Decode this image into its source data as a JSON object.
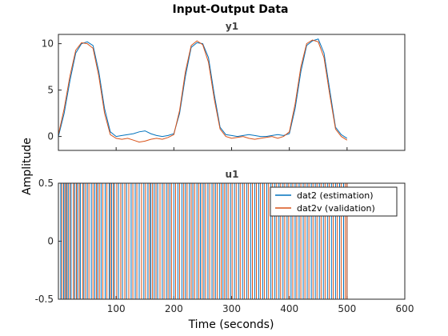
{
  "chart_data": {
    "type": "line",
    "title": "Input-Output Data",
    "xlabel": "Time (seconds)",
    "ylabel": "Amplitude",
    "xlim": [
      0,
      600
    ],
    "x_ticks": [
      "100",
      "200",
      "300",
      "400",
      "500",
      "600"
    ],
    "x_tick_values": [
      100,
      200,
      300,
      400,
      500,
      600
    ],
    "colors": {
      "estimation": "#0072BD",
      "validation": "#D95319"
    },
    "legend": {
      "placement": "inside-top-right of lower axes",
      "entries": [
        "dat2 (estimation)",
        "dat2v (validation)"
      ]
    },
    "panels": [
      {
        "name": "y1",
        "ylim": [
          -1.5,
          11
        ],
        "y_ticks": [
          "0",
          "5",
          "10"
        ],
        "y_tick_values": [
          0,
          5,
          10
        ],
        "series": [
          {
            "name": "dat2 (estimation)",
            "x": [
              0,
              10,
              20,
              30,
              40,
              50,
              60,
              70,
              80,
              90,
              100,
              110,
              120,
              130,
              140,
              150,
              160,
              170,
              180,
              190,
              200,
              210,
              220,
              230,
              240,
              250,
              260,
              270,
              280,
              290,
              300,
              310,
              320,
              330,
              340,
              350,
              360,
              370,
              380,
              390,
              400,
              410,
              420,
              430,
              440,
              450,
              460,
              470,
              480,
              490,
              500
            ],
            "y": [
              0.0,
              2.5,
              6.0,
              9.0,
              10.0,
              10.2,
              9.8,
              7.0,
              3.0,
              0.5,
              0.0,
              0.1,
              0.2,
              0.3,
              0.5,
              0.6,
              0.3,
              0.1,
              0.0,
              0.1,
              0.3,
              2.5,
              6.5,
              9.6,
              10.1,
              10.0,
              8.5,
              4.5,
              1.0,
              0.2,
              0.1,
              0.0,
              0.1,
              0.2,
              0.1,
              0.0,
              0.0,
              0.1,
              0.2,
              0.1,
              0.3,
              3.0,
              7.0,
              9.8,
              10.3,
              10.5,
              9.0,
              5.0,
              1.0,
              0.2,
              -0.2
            ]
          },
          {
            "name": "dat2v (validation)",
            "x": [
              0,
              10,
              20,
              30,
              40,
              50,
              60,
              70,
              80,
              90,
              100,
              110,
              120,
              130,
              140,
              150,
              160,
              170,
              180,
              190,
              200,
              210,
              220,
              230,
              240,
              250,
              260,
              270,
              280,
              290,
              300,
              310,
              320,
              330,
              340,
              350,
              360,
              370,
              380,
              390,
              400,
              410,
              420,
              430,
              440,
              450,
              460,
              470,
              480,
              490,
              500
            ],
            "y": [
              0.2,
              3.0,
              6.5,
              9.3,
              10.1,
              10.0,
              9.5,
              6.5,
              2.5,
              0.2,
              -0.2,
              -0.3,
              -0.2,
              -0.4,
              -0.6,
              -0.5,
              -0.3,
              -0.2,
              -0.3,
              -0.1,
              0.2,
              2.8,
              7.0,
              9.8,
              10.3,
              9.9,
              8.0,
              4.0,
              0.8,
              0.0,
              -0.2,
              -0.1,
              0.0,
              -0.2,
              -0.3,
              -0.2,
              -0.1,
              0.0,
              -0.2,
              0.0,
              0.5,
              3.5,
              7.5,
              10.0,
              10.4,
              10.2,
              8.5,
              4.5,
              0.8,
              0.0,
              -0.4
            ]
          }
        ]
      },
      {
        "name": "u1",
        "ylim": [
          -0.5,
          0.5
        ],
        "y_ticks": [
          "-0.5",
          "0",
          "0.5"
        ],
        "y_tick_values": [
          -0.5,
          0,
          0.5
        ],
        "series": [
          {
            "name": "dat2 (estimation)",
            "note_type": "random binary signal switching between -0.5 and 0.5",
            "x": [
              0,
              4,
              9,
              13,
              17,
              22,
              28,
              33,
              38,
              44,
              50,
              57,
              63,
              68,
              74,
              81,
              88,
              92,
              97,
              104,
              111,
              118,
              126,
              133,
              140,
              148,
              155,
              160,
              166,
              172,
              180,
              187,
              193,
              200,
              207,
              214,
              220,
              227,
              233,
              240,
              246,
              252,
              259,
              266,
              272,
              279,
              285,
              291,
              298,
              305,
              312,
              319,
              326,
              333,
              340,
              347,
              354,
              361,
              368,
              375,
              382,
              389,
              396,
              403,
              410,
              417,
              424,
              431,
              438,
              445,
              452,
              459,
              466,
              473,
              480,
              487,
              494,
              500
            ],
            "y": [
              0.5,
              -0.5,
              0.5,
              -0.5,
              0.5,
              -0.5,
              0.5,
              -0.5,
              0.5,
              -0.5,
              0.5,
              -0.5,
              0.5,
              -0.5,
              0.5,
              -0.5,
              0.5,
              -0.5,
              0.5,
              -0.5,
              0.5,
              -0.5,
              0.5,
              -0.5,
              0.5,
              -0.5,
              0.5,
              -0.5,
              0.5,
              -0.5,
              0.5,
              -0.5,
              0.5,
              -0.5,
              0.5,
              -0.5,
              0.5,
              -0.5,
              0.5,
              -0.5,
              0.5,
              -0.5,
              0.5,
              -0.5,
              0.5,
              -0.5,
              0.5,
              -0.5,
              0.5,
              -0.5,
              0.5,
              -0.5,
              0.5,
              -0.5,
              0.5,
              -0.5,
              0.5,
              -0.5,
              0.5,
              -0.5,
              0.5,
              -0.5,
              0.5,
              -0.5,
              0.5,
              -0.5,
              0.5,
              -0.5,
              0.5,
              -0.5,
              0.5,
              -0.5,
              0.5,
              -0.5,
              0.5,
              -0.5,
              0.5,
              -0.5
            ]
          },
          {
            "name": "dat2v (validation)",
            "x": [
              0,
              6,
              11,
              15,
              20,
              26,
              31,
              36,
              42,
              47,
              53,
              60,
              66,
              71,
              77,
              84,
              90,
              95,
              101,
              108,
              115,
              122,
              129,
              136,
              144,
              151,
              158,
              163,
              169,
              176,
              183,
              190,
              196,
              203,
              210,
              217,
              223,
              230,
              236,
              243,
              249,
              255,
              262,
              269,
              275,
              282,
              288,
              294,
              301,
              308,
              315,
              322,
              329,
              336,
              343,
              350,
              357,
              364,
              371,
              378,
              385,
              392,
              399,
              406,
              413,
              420,
              427,
              434,
              441,
              448,
              455,
              462,
              469,
              476,
              483,
              490,
              497,
              500
            ],
            "y": [
              -0.5,
              0.5,
              -0.5,
              0.5,
              -0.5,
              0.5,
              -0.5,
              0.5,
              -0.5,
              0.5,
              -0.5,
              0.5,
              -0.5,
              0.5,
              -0.5,
              0.5,
              -0.5,
              0.5,
              -0.5,
              0.5,
              -0.5,
              0.5,
              -0.5,
              0.5,
              -0.5,
              0.5,
              -0.5,
              0.5,
              -0.5,
              0.5,
              -0.5,
              0.5,
              -0.5,
              0.5,
              -0.5,
              0.5,
              -0.5,
              0.5,
              -0.5,
              0.5,
              -0.5,
              0.5,
              -0.5,
              0.5,
              -0.5,
              0.5,
              -0.5,
              0.5,
              -0.5,
              0.5,
              -0.5,
              0.5,
              -0.5,
              0.5,
              -0.5,
              0.5,
              -0.5,
              0.5,
              -0.5,
              0.5,
              -0.5,
              0.5,
              -0.5,
              0.5,
              -0.5,
              0.5,
              -0.5,
              0.5,
              -0.5,
              0.5,
              -0.5,
              0.5,
              -0.5,
              0.5,
              -0.5,
              0.5,
              -0.5,
              0.5
            ]
          }
        ]
      }
    ]
  }
}
